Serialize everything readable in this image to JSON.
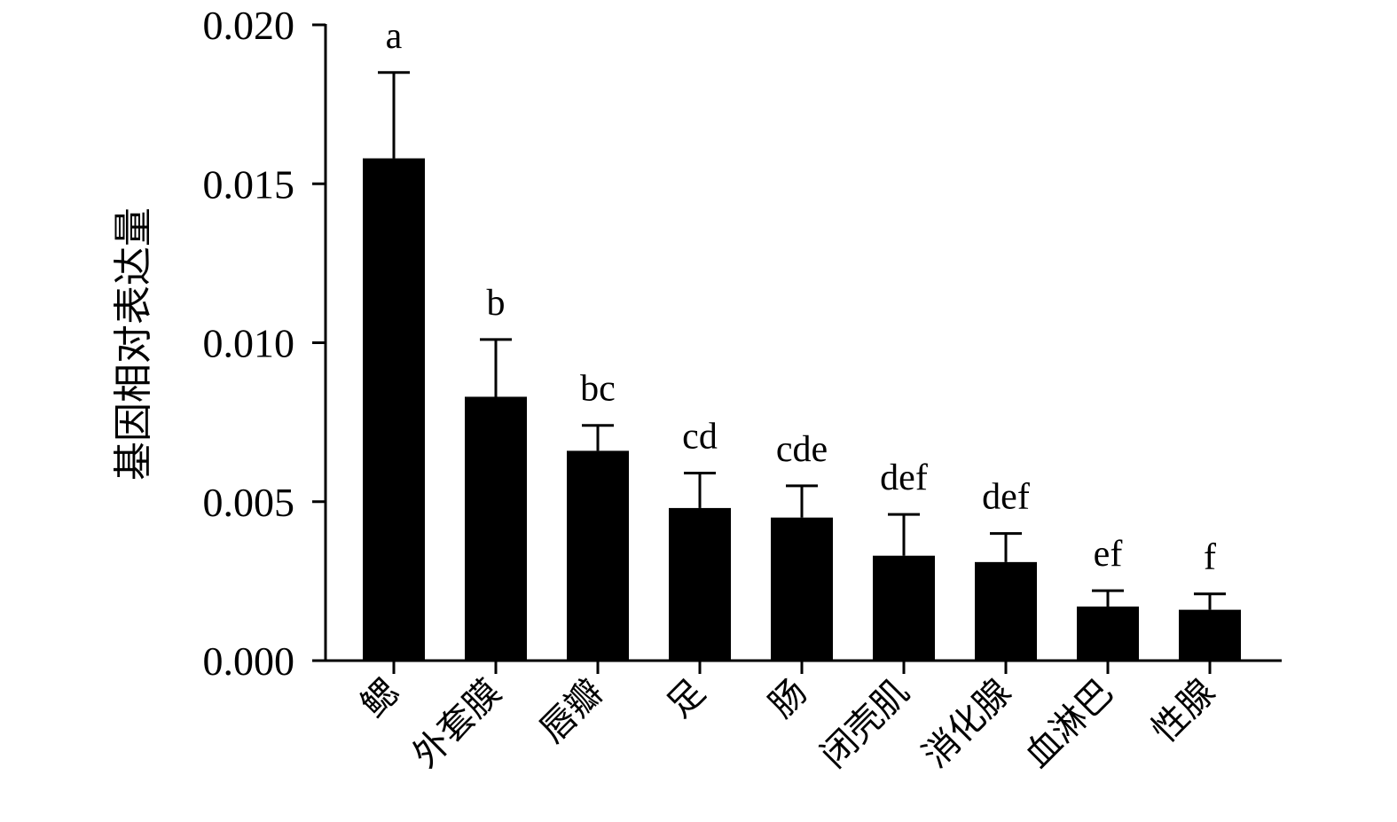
{
  "chart_data": {
    "type": "bar",
    "title": "",
    "xlabel": "",
    "ylabel": "基因相对表达量",
    "ylim": [
      0,
      0.02
    ],
    "yticks": [
      "0.000",
      "0.005",
      "0.010",
      "0.015",
      "0.020"
    ],
    "ytick_values": [
      0,
      0.005,
      0.01,
      0.015,
      0.02
    ],
    "categories": [
      "鳃",
      "外套膜",
      "唇瓣",
      "足",
      "肠",
      "闭壳肌",
      "消化腺",
      "血淋巴",
      "性腺"
    ],
    "values": [
      0.0158,
      0.0083,
      0.0066,
      0.0048,
      0.0045,
      0.0033,
      0.0031,
      0.0017,
      0.0016
    ],
    "errors": [
      0.0027,
      0.0018,
      0.0008,
      0.0011,
      0.001,
      0.0013,
      0.0009,
      0.0005,
      0.0005
    ],
    "significance": [
      "a",
      "b",
      "bc",
      "cd",
      "cde",
      "def",
      "def",
      "ef",
      "f"
    ],
    "grid": false,
    "legend": "none",
    "bar_color": "#000000"
  }
}
